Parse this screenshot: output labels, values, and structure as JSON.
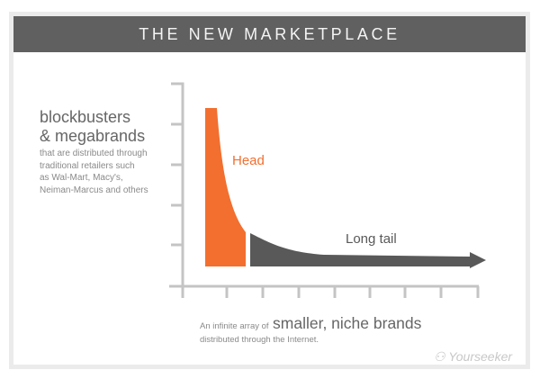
{
  "title": "THE NEW MARKETPLACE",
  "left_text": {
    "heading_lines": [
      "blockbusters",
      "& megabrands"
    ],
    "detail_lines": [
      "that are distributed through",
      "traditional retailers such",
      "as Wal-Mart, Macy's,",
      "Neiman-Marcus and others"
    ]
  },
  "labels": {
    "head": "Head",
    "long_tail": "Long tail"
  },
  "bottom_text": {
    "prefix": "An infinite array of",
    "emphasis": "smaller, niche brands",
    "line2": "distributed through the Internet."
  },
  "watermark": "Yourseeker",
  "colors": {
    "head": "#f26f2f",
    "tail": "#595959",
    "axis": "#c4c4c4",
    "title_bar": "#606060"
  }
}
